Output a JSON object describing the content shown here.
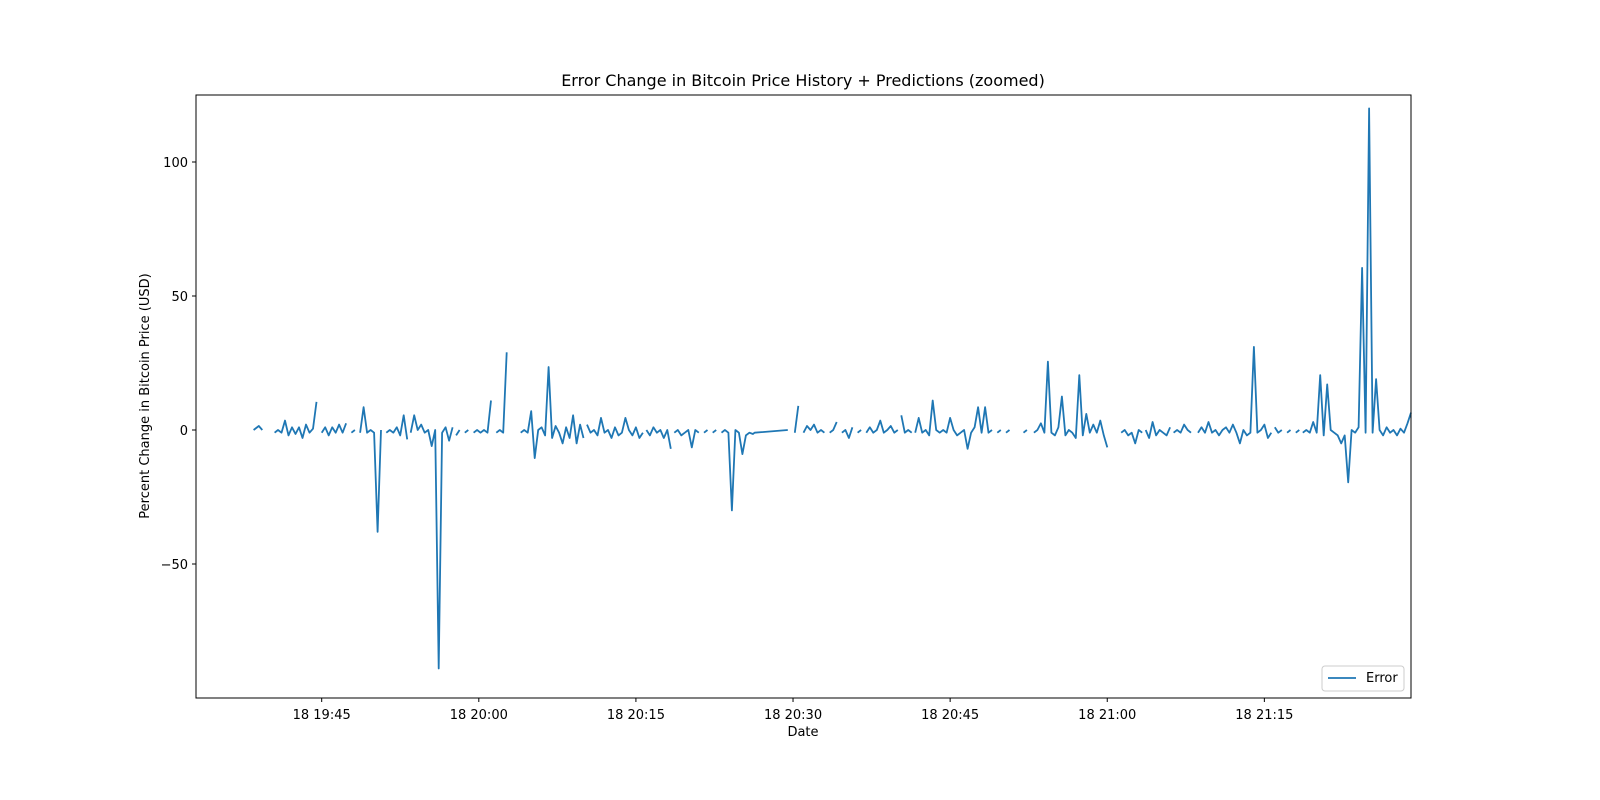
{
  "chart_data": {
    "type": "line",
    "title": "Error Change in Bitcoin Price History + Predictions (zoomed)",
    "xlabel": "Date",
    "ylabel": "Percent Change in Bitcoin Price (USD)",
    "x_unit": "time on 18th, HH:MM:SS",
    "xlim": [
      "19:33:00",
      "21:29:00"
    ],
    "ylim": [
      -100,
      125
    ],
    "x_ticks": [
      {
        "value": "19:45:00",
        "label": "18 19:45"
      },
      {
        "value": "20:00:00",
        "label": "18 20:00"
      },
      {
        "value": "20:15:00",
        "label": "18 20:15"
      },
      {
        "value": "20:30:00",
        "label": "18 20:30"
      },
      {
        "value": "20:45:00",
        "label": "18 20:45"
      },
      {
        "value": "21:00:00",
        "label": "18 21:00"
      },
      {
        "value": "21:15:00",
        "label": "18 21:15"
      }
    ],
    "y_ticks": [
      -50,
      0,
      50,
      100
    ],
    "grid": false,
    "legend": {
      "position": "bottom-right",
      "entries": [
        "Error"
      ]
    },
    "colors": {
      "series": "#1f77b4",
      "axes": "#000000"
    },
    "series": [
      {
        "name": "Error",
        "segments": [
          {
            "x": [
              "19:38:30",
              "19:39:00",
              "19:39:20"
            ],
            "y": [
              0,
              1.5,
              0
            ]
          },
          {
            "x": [
              "19:40:30",
              "19:40:50",
              "19:41:10",
              "19:41:30",
              "19:41:50",
              "19:42:10",
              "19:42:30",
              "19:42:50",
              "19:43:10",
              "19:43:30",
              "19:43:50",
              "19:44:10",
              "19:44:30"
            ],
            "y": [
              -1,
              0,
              -1,
              3.5,
              -2,
              1,
              -1.5,
              1,
              -3,
              2,
              -1,
              0.5,
              10.5
            ]
          },
          {
            "x": [
              "19:45:00",
              "19:45:20",
              "19:45:40",
              "19:46:00",
              "19:46:20",
              "19:46:40",
              "19:47:00",
              "19:47:20"
            ],
            "y": [
              -1,
              1,
              -2,
              1,
              -1,
              2,
              -1,
              2.5
            ]
          },
          {
            "x": [
              "19:47:50",
              "19:48:10"
            ],
            "y": [
              -1,
              0
            ]
          },
          {
            "x": [
              "19:48:40",
              "19:49:00",
              "19:49:20",
              "19:49:40",
              "19:50:00",
              "19:50:20",
              "19:50:40"
            ],
            "y": [
              -1,
              8.5,
              -1,
              0,
              -1,
              -38,
              0
            ]
          },
          {
            "x": [
              "19:51:10",
              "19:51:30",
              "19:51:50",
              "19:52:10",
              "19:52:30",
              "19:52:50",
              "19:53:10"
            ],
            "y": [
              -1,
              0,
              -1,
              1,
              -2,
              5.5,
              -3.5
            ]
          },
          {
            "x": [
              "19:53:30",
              "19:53:50",
              "19:54:10",
              "19:54:30",
              "19:54:50",
              "19:55:10",
              "19:55:30",
              "19:55:50",
              "19:56:10",
              "19:56:30",
              "19:56:50",
              "19:57:10",
              "19:57:30"
            ],
            "y": [
              -1,
              5.5,
              0,
              2,
              -1,
              0,
              -6,
              0,
              -89,
              -1,
              1,
              -4,
              1
            ]
          },
          {
            "x": [
              "19:57:50",
              "19:58:10"
            ],
            "y": [
              -2,
              0
            ]
          },
          {
            "x": [
              "19:58:40",
              "19:59:00"
            ],
            "y": [
              -1,
              0
            ]
          },
          {
            "x": [
              "19:59:30",
              "19:59:50",
              "20:00:10",
              "20:00:30",
              "20:00:50",
              "20:01:10"
            ],
            "y": [
              -1,
              0,
              -1,
              0,
              -1,
              11
            ]
          },
          {
            "x": [
              "20:01:40",
              "20:02:00",
              "20:02:20",
              "20:02:40"
            ],
            "y": [
              -1,
              0,
              -1,
              29
            ]
          },
          {
            "x": [
              "20:04:00",
              "20:04:20",
              "20:04:40",
              "20:05:00",
              "20:05:20",
              "20:05:40",
              "20:06:00",
              "20:06:20",
              "20:06:40",
              "20:07:00",
              "20:07:20",
              "20:07:40",
              "20:08:00",
              "20:08:20",
              "20:08:40",
              "20:09:00",
              "20:09:20",
              "20:09:40",
              "20:10:00"
            ],
            "y": [
              -1,
              0,
              -1,
              7,
              -10.5,
              0,
              1,
              -2,
              23.5,
              -3,
              1.5,
              -1,
              -5,
              1,
              -3,
              5.5,
              -5,
              2,
              -3
            ]
          },
          {
            "x": [
              "20:10:20",
              "20:10:40",
              "20:11:00",
              "20:11:20",
              "20:11:40",
              "20:12:00",
              "20:12:20",
              "20:12:40",
              "20:13:00",
              "20:13:20",
              "20:13:40",
              "20:14:00",
              "20:14:20",
              "20:14:40",
              "20:15:00",
              "20:15:20",
              "20:15:40"
            ],
            "y": [
              2,
              -1,
              0,
              -2,
              4.5,
              -1,
              0,
              -3,
              1,
              -2,
              -1,
              4.5,
              0,
              -2,
              1,
              -3,
              -1
            ]
          },
          {
            "x": [
              "20:16:00",
              "20:16:20",
              "20:16:40",
              "20:17:00",
              "20:17:20",
              "20:17:40",
              "20:18:00",
              "20:18:20"
            ],
            "y": [
              0,
              -2,
              1,
              -1,
              0,
              -3,
              0,
              -7
            ]
          },
          {
            "x": [
              "20:18:40",
              "20:19:00",
              "20:19:20",
              "20:19:40",
              "20:20:00",
              "20:20:20",
              "20:20:40",
              "20:21:00"
            ],
            "y": [
              -1,
              0,
              -2,
              -1,
              0,
              -6.5,
              0,
              -1
            ]
          },
          {
            "x": [
              "20:21:30",
              "20:21:50"
            ],
            "y": [
              -1,
              0
            ]
          },
          {
            "x": [
              "20:22:20",
              "20:22:40"
            ],
            "y": [
              -1,
              0
            ]
          },
          {
            "x": [
              "20:23:10",
              "20:23:30",
              "20:23:50",
              "20:24:10",
              "20:24:30",
              "20:24:50",
              "20:25:10",
              "20:25:30",
              "20:25:50",
              "20:26:10",
              "20:26:20",
              "20:29:30"
            ],
            "y": [
              -1,
              0,
              -1,
              -30,
              0,
              -1,
              -9,
              -2,
              -1,
              -1.5,
              -1,
              0
            ]
          },
          {
            "x": [
              "20:30:10",
              "20:30:30"
            ],
            "y": [
              -1,
              9
            ]
          },
          {
            "x": [
              "20:31:00",
              "20:31:20",
              "20:31:40",
              "20:32:00",
              "20:32:20",
              "20:32:40",
              "20:33:00"
            ],
            "y": [
              -1,
              1.5,
              0,
              2,
              -1,
              0,
              -1
            ]
          },
          {
            "x": [
              "20:33:30",
              "20:33:50",
              "20:34:10"
            ],
            "y": [
              -1,
              0,
              3
            ]
          },
          {
            "x": [
              "20:34:40",
              "20:35:00",
              "20:35:20",
              "20:35:40"
            ],
            "y": [
              -1,
              0,
              -3,
              1
            ]
          },
          {
            "x": [
              "20:36:10",
              "20:36:30"
            ],
            "y": [
              -1,
              0
            ]
          },
          {
            "x": [
              "20:37:00",
              "20:37:20",
              "20:37:40",
              "20:38:00",
              "20:38:20",
              "20:38:40",
              "20:39:00",
              "20:39:20",
              "20:39:40",
              "20:40:00"
            ],
            "y": [
              -1,
              1,
              -1,
              0,
              3.5,
              -1,
              0,
              1.5,
              -1,
              0
            ]
          },
          {
            "x": [
              "20:40:20",
              "20:40:40",
              "20:41:00",
              "20:41:20"
            ],
            "y": [
              5.5,
              -1,
              0,
              -1
            ]
          },
          {
            "x": [
              "20:41:40",
              "20:42:00",
              "20:42:20",
              "20:42:40",
              "20:43:00",
              "20:43:20",
              "20:43:40",
              "20:44:00",
              "20:44:20",
              "20:44:40",
              "20:45:00",
              "20:45:20",
              "20:45:40",
              "20:46:00",
              "20:46:20",
              "20:46:40",
              "20:47:00",
              "20:47:20",
              "20:47:40",
              "20:48:00",
              "20:48:20",
              "20:48:40",
              "20:49:00"
            ],
            "y": [
              -1,
              4.5,
              -1,
              0,
              -2,
              11,
              0,
              -1,
              0,
              -1,
              4.5,
              0,
              -2,
              -1,
              0,
              -7,
              -1,
              1,
              8.5,
              -1,
              8.5,
              -1,
              0
            ]
          },
          {
            "x": [
              "20:49:30",
              "20:49:50"
            ],
            "y": [
              -1,
              0
            ]
          },
          {
            "x": [
              "20:50:20",
              "20:50:40"
            ],
            "y": [
              -1,
              0
            ]
          },
          {
            "x": [
              "20:52:00",
              "20:52:20"
            ],
            "y": [
              -1,
              0
            ]
          },
          {
            "x": [
              "20:53:00",
              "20:53:20",
              "20:53:40",
              "20:54:00",
              "20:54:20",
              "20:54:40",
              "20:55:00",
              "20:55:20",
              "20:55:40",
              "20:56:00",
              "20:56:20",
              "20:56:40",
              "20:57:00",
              "20:57:20",
              "20:57:40",
              "20:58:00",
              "20:58:20",
              "20:58:40",
              "20:59:00",
              "20:59:20",
              "20:59:40",
              "21:00:00"
            ],
            "y": [
              -1,
              0,
              2.5,
              -1,
              25.5,
              -1,
              -2,
              1,
              12.5,
              -2,
              0,
              -1,
              -3,
              20.5,
              -2,
              6,
              -1,
              2,
              -1,
              3.5,
              -2,
              -6.5
            ]
          },
          {
            "x": [
              "21:01:20",
              "21:01:40",
              "21:02:00",
              "21:02:20",
              "21:02:40",
              "21:03:00",
              "21:03:20"
            ],
            "y": [
              -1,
              0,
              -2,
              -1,
              -5,
              0,
              -1
            ]
          },
          {
            "x": [
              "21:03:40",
              "21:04:00",
              "21:04:20",
              "21:04:40",
              "21:05:00",
              "21:05:20",
              "21:05:40",
              "21:06:00"
            ],
            "y": [
              0,
              -3,
              3,
              -2,
              0,
              -1,
              -2,
              1
            ]
          },
          {
            "x": [
              "21:06:20",
              "21:06:40",
              "21:07:00",
              "21:07:20",
              "21:07:40",
              "21:08:00"
            ],
            "y": [
              -1,
              0,
              -1,
              2,
              0,
              -1
            ]
          },
          {
            "x": [
              "21:08:40",
              "21:09:00",
              "21:09:20",
              "21:09:40",
              "21:10:00",
              "21:10:20",
              "21:10:40",
              "21:11:00",
              "21:11:20",
              "21:11:40",
              "21:12:00",
              "21:12:20",
              "21:12:40",
              "21:13:00",
              "21:13:20",
              "21:13:40",
              "21:14:00",
              "21:14:20",
              "21:14:40",
              "21:15:00",
              "21:15:20",
              "21:15:40"
            ],
            "y": [
              -1,
              1,
              -1,
              3,
              -1,
              0,
              -2,
              0,
              1,
              -1,
              2,
              -1,
              -5,
              0,
              -2,
              -1,
              31,
              -1,
              0,
              2,
              -3,
              -1
            ]
          },
          {
            "x": [
              "21:16:00",
              "21:16:20",
              "21:16:40"
            ],
            "y": [
              1,
              -1,
              0
            ]
          },
          {
            "x": [
              "21:17:10",
              "21:17:30"
            ],
            "y": [
              -1,
              0
            ]
          },
          {
            "x": [
              "21:18:00",
              "21:18:20"
            ],
            "y": [
              -1,
              0
            ]
          },
          {
            "x": [
              "21:18:40",
              "21:19:00",
              "21:19:20",
              "21:19:40",
              "21:20:00",
              "21:20:20",
              "21:20:40",
              "21:21:00",
              "21:21:20",
              "21:21:40",
              "21:22:00",
              "21:22:20",
              "21:22:40",
              "21:23:00",
              "21:23:20",
              "21:23:40",
              "21:24:00",
              "21:24:20",
              "21:24:40",
              "21:25:00",
              "21:25:20",
              "21:25:40",
              "21:26:00",
              "21:26:20",
              "21:26:40",
              "21:27:00",
              "21:27:20",
              "21:27:40",
              "21:28:00",
              "21:28:20",
              "21:28:40",
              "21:29:00"
            ],
            "y": [
              -1,
              0,
              -1,
              3,
              -1,
              20.5,
              -2,
              17,
              0,
              -1,
              -2,
              -5,
              -2,
              -19.5,
              0,
              -1,
              1,
              60.5,
              -1,
              120,
              -1,
              19,
              0,
              -2,
              1,
              -1,
              0,
              -2,
              0.5,
              -1,
              2.5,
              6.5
            ]
          }
        ]
      }
    ]
  }
}
